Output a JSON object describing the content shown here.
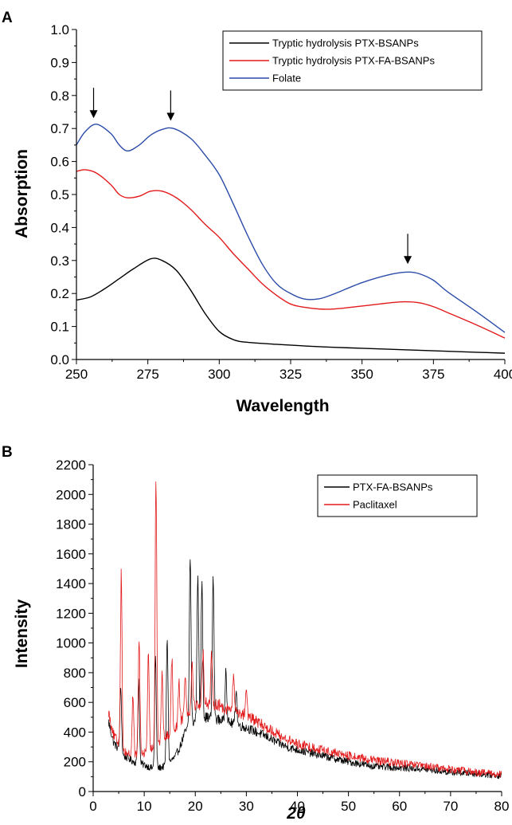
{
  "chart_data": [
    {
      "panel": "A",
      "type": "line",
      "xlabel": "Wavelength",
      "ylabel": "Absorption",
      "xlim": [
        250,
        400
      ],
      "ylim": [
        0.0,
        1.0
      ],
      "xticks": [
        "250",
        "275",
        "300",
        "325",
        "350",
        "375",
        "400"
      ],
      "yticks": [
        "0.0",
        "0.1",
        "0.2",
        "0.3",
        "0.4",
        "0.5",
        "0.6",
        "0.7",
        "0.8",
        "0.9",
        "1.0"
      ],
      "legend_position": "top-right",
      "series": [
        {
          "name": "Tryptic hydrolysis PTX-BSANPs",
          "color": "#000000",
          "x": [
            250,
            255,
            260,
            265,
            270,
            276,
            280,
            285,
            290,
            295,
            300,
            305,
            310,
            320,
            330,
            340,
            350,
            360,
            370,
            380,
            390,
            400
          ],
          "y": [
            0.18,
            0.19,
            0.215,
            0.245,
            0.275,
            0.305,
            0.3,
            0.27,
            0.21,
            0.14,
            0.085,
            0.06,
            0.052,
            0.046,
            0.041,
            0.037,
            0.034,
            0.031,
            0.028,
            0.025,
            0.022,
            0.019
          ]
        },
        {
          "name": "Tryptic hydrolysis PTX-FA-BSANPs",
          "color": "#e31a1c",
          "x": [
            250,
            253,
            257,
            262,
            265,
            268,
            272,
            276,
            280,
            285,
            290,
            295,
            300,
            305,
            310,
            315,
            320,
            325,
            330,
            335,
            340,
            350,
            360,
            365,
            370,
            375,
            380,
            390,
            400
          ],
          "y": [
            0.57,
            0.575,
            0.565,
            0.53,
            0.5,
            0.49,
            0.495,
            0.51,
            0.51,
            0.49,
            0.455,
            0.41,
            0.37,
            0.32,
            0.275,
            0.23,
            0.195,
            0.168,
            0.158,
            0.153,
            0.153,
            0.162,
            0.172,
            0.175,
            0.172,
            0.16,
            0.142,
            0.105,
            0.065
          ]
        },
        {
          "name": "Folate",
          "color": "#2b4ca8",
          "x": [
            250,
            253,
            257,
            262,
            265,
            268,
            272,
            276,
            280,
            284,
            290,
            295,
            300,
            305,
            310,
            315,
            320,
            325,
            330,
            335,
            340,
            350,
            360,
            366,
            370,
            375,
            380,
            390,
            400
          ],
          "y": [
            0.65,
            0.69,
            0.713,
            0.685,
            0.65,
            0.632,
            0.65,
            0.68,
            0.697,
            0.7,
            0.67,
            0.62,
            0.56,
            0.47,
            0.375,
            0.29,
            0.23,
            0.2,
            0.183,
            0.184,
            0.198,
            0.233,
            0.258,
            0.265,
            0.26,
            0.24,
            0.205,
            0.145,
            0.082
          ]
        }
      ],
      "arrows_at_wavelength": [
        256,
        283,
        366
      ]
    },
    {
      "panel": "B",
      "type": "line",
      "xlabel": "2θ",
      "ylabel": "Intensity",
      "xlim": [
        0,
        80
      ],
      "ylim": [
        0,
        2200
      ],
      "xticks": [
        "0",
        "10",
        "20",
        "30",
        "40",
        "50",
        "60",
        "70",
        "80"
      ],
      "yticks": [
        "0",
        "200",
        "400",
        "600",
        "800",
        "1000",
        "1200",
        "1400",
        "1600",
        "1800",
        "2000",
        "2200"
      ],
      "legend_position": "top-right",
      "series": [
        {
          "name": "PTX-FA-BSANPs",
          "color": "#000000",
          "baseline": {
            "x": [
              3,
              4,
              6,
              8,
              10,
              12,
              14,
              16,
              17,
              18,
              20,
              22,
              24,
              26,
              28,
              30,
              32,
              34,
              36,
              38,
              40,
              45,
              50,
              55,
              60,
              65,
              70,
              75,
              80
            ],
            "y": [
              470,
              330,
              240,
              200,
              180,
              150,
              170,
              230,
              300,
              400,
              480,
              500,
              490,
              470,
              450,
              430,
              400,
              370,
              330,
              300,
              280,
              240,
              200,
              170,
              160,
              150,
              130,
              120,
              105
            ]
          },
          "peaks": [
            {
              "x": 5.4,
              "y": 700
            },
            {
              "x": 8.9,
              "y": 750
            },
            {
              "x": 12.2,
              "y": 900
            },
            {
              "x": 14.5,
              "y": 1050
            },
            {
              "x": 19.0,
              "y": 1600
            },
            {
              "x": 20.5,
              "y": 1500
            },
            {
              "x": 21.3,
              "y": 1440
            },
            {
              "x": 23.5,
              "y": 1460
            },
            {
              "x": 26.0,
              "y": 850
            },
            {
              "x": 28.0,
              "y": 700
            }
          ],
          "noise": 35
        },
        {
          "name": "Paclitaxel",
          "color": "#e31a1c",
          "baseline": {
            "x": [
              3,
              4,
              6,
              8,
              10,
              12,
              14,
              16,
              18,
              20,
              22,
              24,
              26,
              28,
              30,
              32,
              34,
              36,
              38,
              40,
              45,
              50,
              55,
              60,
              65,
              70,
              75,
              80
            ],
            "y": [
              540,
              380,
              270,
              240,
              260,
              300,
              360,
              420,
              520,
              580,
              600,
              590,
              560,
              540,
              510,
              470,
              430,
              390,
              350,
              320,
              280,
              240,
              210,
              190,
              170,
              150,
              130,
              115
            ]
          },
          "peaks": [
            {
              "x": 5.5,
              "y": 1440
            },
            {
              "x": 7.8,
              "y": 650
            },
            {
              "x": 9.0,
              "y": 1030
            },
            {
              "x": 10.8,
              "y": 900
            },
            {
              "x": 12.3,
              "y": 2130
            },
            {
              "x": 13.5,
              "y": 800
            },
            {
              "x": 15.4,
              "y": 900
            },
            {
              "x": 16.8,
              "y": 750
            },
            {
              "x": 18.0,
              "y": 800
            },
            {
              "x": 19.4,
              "y": 880
            },
            {
              "x": 21.5,
              "y": 950
            },
            {
              "x": 23.2,
              "y": 900
            },
            {
              "x": 27.5,
              "y": 780
            },
            {
              "x": 30.0,
              "y": 700
            }
          ],
          "noise": 40
        }
      ]
    }
  ]
}
